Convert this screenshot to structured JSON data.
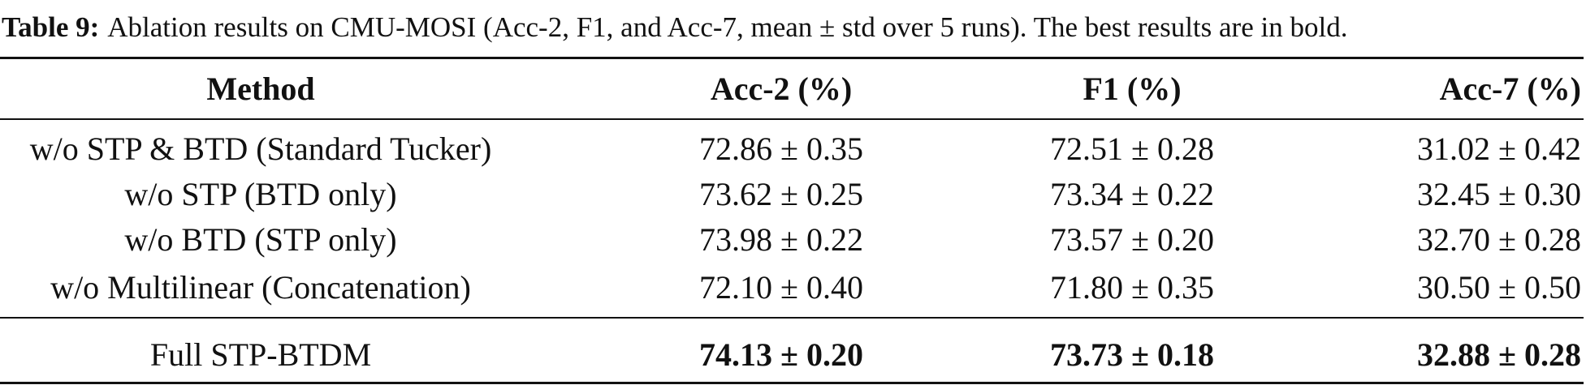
{
  "caption": {
    "label": "Table 9:",
    "text": "Ablation results on CMU-MOSI (Acc-2, F1, and Acc-7, mean ± std over 5 runs). The best results are in bold."
  },
  "table": {
    "header": [
      "Method",
      "Acc-2 (%)",
      "F1 (%)",
      "Acc-7 (%)"
    ],
    "rows": [
      [
        "w/o STP & BTD (Standard Tucker)",
        "72.86 ± 0.35",
        "72.51 ± 0.28",
        "31.02 ± 0.42"
      ],
      [
        "w/o STP (BTD only)",
        "73.62 ± 0.25",
        "73.34 ± 0.22",
        "32.45 ± 0.30"
      ],
      [
        "w/o BTD (STP only)",
        "73.98 ± 0.22",
        "73.57 ± 0.20",
        "32.70 ± 0.28"
      ],
      [
        "w/o Multilinear (Concatenation)",
        "72.10 ± 0.40",
        "71.80 ± 0.35",
        "30.50 ± 0.50"
      ],
      [
        "Full STP-BTDM",
        "74.13 ± 0.20",
        "73.73 ± 0.18",
        "32.88 ± 0.28"
      ]
    ]
  }
}
